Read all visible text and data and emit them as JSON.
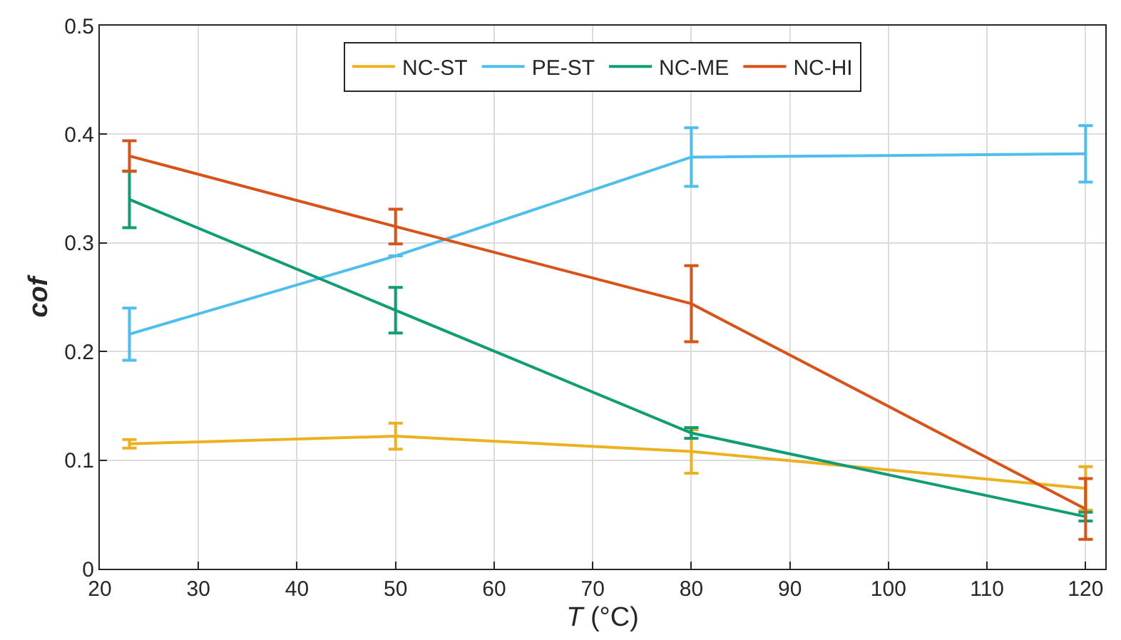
{
  "chart_data": {
    "type": "line",
    "xlabel": "T (°C)",
    "ylabel": "cof",
    "x": [
      23,
      50,
      80,
      120
    ],
    "series": [
      {
        "name": "NC-ST",
        "color": "#edb120",
        "values": [
          0.115,
          0.122,
          0.108,
          0.074
        ],
        "errors": [
          0.004,
          0.012,
          0.02,
          0.02
        ]
      },
      {
        "name": "PE-ST",
        "color": "#4dbeee",
        "values": [
          0.216,
          0.288,
          0.379,
          0.382
        ],
        "errors": [
          0.024,
          null,
          0.027,
          0.026
        ]
      },
      {
        "name": "NC-ME",
        "color": "#0f9d74",
        "values": [
          0.34,
          0.238,
          0.125,
          0.048
        ],
        "errors": [
          0.026,
          0.021,
          0.005,
          0.004
        ]
      },
      {
        "name": "NC-HI",
        "color": "#d95319",
        "values": [
          0.38,
          0.315,
          0.244,
          0.055
        ],
        "errors": [
          0.014,
          0.016,
          0.035,
          0.028
        ]
      }
    ],
    "xlim": [
      20,
      122
    ],
    "xticks": [
      20,
      30,
      40,
      50,
      60,
      70,
      80,
      90,
      100,
      110,
      120
    ],
    "ylim": [
      0,
      0.5
    ],
    "yticks": [
      0,
      0.1,
      0.2,
      0.3,
      0.4,
      0.5
    ],
    "grid": true,
    "legend": "top",
    "line_style": "solid"
  }
}
